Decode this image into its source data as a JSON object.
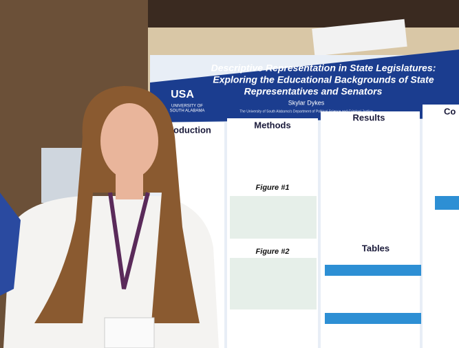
{
  "poster": {
    "title": [
      "Descriptive Representation in State Legislatures:",
      "Exploring the Educational Backgrounds of State",
      "Representatives and Senators"
    ],
    "author": "Skylar Dykes",
    "affiliation": "The University of South Alabama's Department of Political Science and Criminal Justice",
    "logo": {
      "abbr": "USA",
      "name": [
        "UNIVERSITY OF",
        "SOUTH ALABAMA"
      ]
    },
    "sections": [
      "oduction",
      "Methods",
      "Results",
      "Co"
    ],
    "figures": [
      "Figure #1",
      "Figure #2"
    ],
    "tables": "Tables"
  }
}
